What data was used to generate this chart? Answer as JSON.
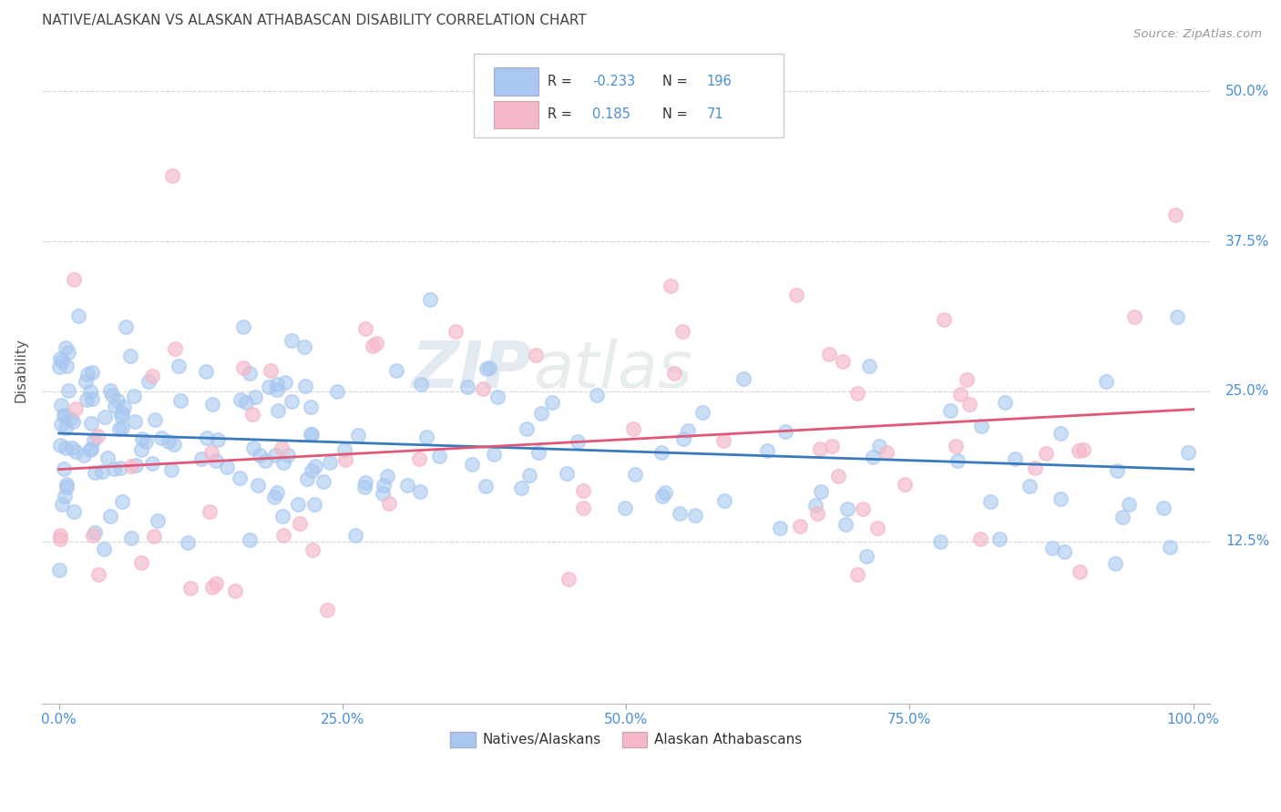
{
  "title": "NATIVE/ALASKAN VS ALASKAN ATHABASCAN DISABILITY CORRELATION CHART",
  "source": "Source: ZipAtlas.com",
  "ylabel": "Disability",
  "xlim": [
    0.0,
    1.0
  ],
  "ylim": [
    0.0,
    0.54
  ],
  "xticks": [
    0.0,
    0.25,
    0.5,
    0.75,
    1.0
  ],
  "xticklabels": [
    "0.0%",
    "25.0%",
    "50.0%",
    "75.0%",
    "100.0%"
  ],
  "ytick_positions": [
    0.125,
    0.25,
    0.375,
    0.5
  ],
  "yticklabels": [
    "12.5%",
    "25.0%",
    "37.5%",
    "50.0%"
  ],
  "blue_R": -0.233,
  "blue_N": 196,
  "pink_R": 0.185,
  "pink_N": 71,
  "blue_scatter_color": "#A8C8F0",
  "pink_scatter_color": "#F5B8C8",
  "blue_line_color": "#3A7ABD",
  "pink_line_color": "#E05878",
  "legend_label_blue": "Natives/Alaskans",
  "legend_label_pink": "Alaskan Athabascans",
  "watermark_top": "ZIP",
  "watermark_bot": "atlas",
  "background_color": "#FFFFFF",
  "grid_color": "#CCCCCC",
  "title_color": "#333333",
  "axis_label_color": "#555555",
  "tick_label_color": "#4A90D9",
  "legend_text_color": "#4A90D9",
  "blue_line_start_y": 0.215,
  "blue_line_end_y": 0.185,
  "pink_line_start_y": 0.185,
  "pink_line_end_y": 0.235
}
